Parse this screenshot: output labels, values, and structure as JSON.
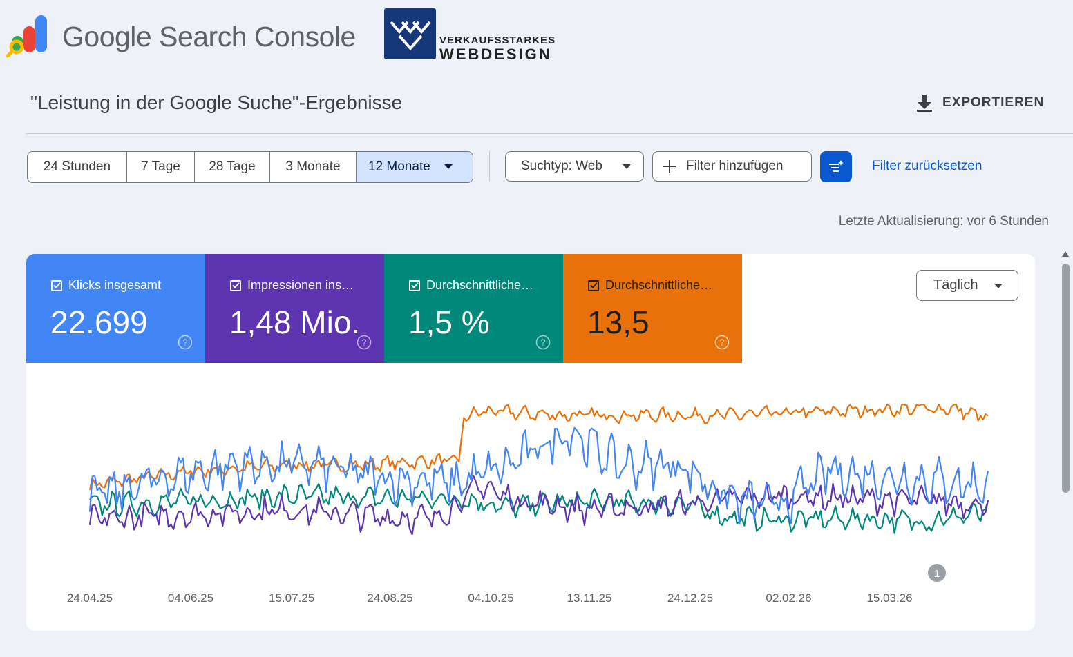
{
  "brand": {
    "product_name": "Google Search Console",
    "partner_line1": "VERKAUFSSTARKES",
    "partner_line2": "WEBDESIGN"
  },
  "page": {
    "title": "\"Leistung in der Google Suche\"-Ergebnisse",
    "export_label": "EXPORTIEREN",
    "last_update": "Letzte Aktualisierung: vor 6 Stunden"
  },
  "date_range": {
    "options": [
      "24 Stunden",
      "7 Tage",
      "28 Tage",
      "3 Monate",
      "12 Monate"
    ],
    "selected": "12 Monate"
  },
  "filters": {
    "search_type": "Suchtyp: Web",
    "add_filter": "Filter hinzufügen",
    "reset": "Filter zurücksetzen"
  },
  "metrics": [
    {
      "label": "Klicks insgesamt",
      "value": "22.699",
      "checked": true,
      "color": "#4285f4"
    },
    {
      "label": "Impressionen ins…",
      "value": "1,48 Mio.",
      "checked": true,
      "color": "#5e35b1"
    },
    {
      "label": "Durchschnittliche…",
      "value": "1,5 %",
      "checked": true,
      "color": "#00897b"
    },
    {
      "label": "Durchschnittliche…",
      "value": "13,5",
      "checked": true,
      "color": "#e8710a"
    }
  ],
  "granularity": "Täglich",
  "chart_data": {
    "type": "line",
    "x_tick_labels": [
      "24.04.25",
      "04.06.25",
      "15.07.25",
      "24.08.25",
      "04.10.25",
      "13.11.25",
      "24.12.25",
      "02.02.26",
      "15.03.26"
    ],
    "x_range": [
      "24.04.25",
      "29.04.26"
    ],
    "y_axis_labels": "none",
    "grid": false,
    "annotation": "1",
    "series": [
      {
        "color": "#4285f4",
        "note": "daily values, unitless (no y scale shown)",
        "knots": [
          [
            0,
            0.3
          ],
          [
            30,
            0.45
          ],
          [
            60,
            0.55
          ],
          [
            90,
            0.55
          ],
          [
            120,
            0.45
          ],
          [
            150,
            0.42
          ],
          [
            170,
            0.55
          ],
          [
            195,
            0.8
          ],
          [
            215,
            0.55
          ],
          [
            240,
            0.55
          ],
          [
            260,
            0.3
          ],
          [
            280,
            0.25
          ],
          [
            300,
            0.5
          ],
          [
            330,
            0.45
          ],
          [
            365,
            0.4
          ]
        ],
        "spread": 0.16
      },
      {
        "color": "#5e35b1",
        "knots": [
          [
            0,
            0.14
          ],
          [
            40,
            0.18
          ],
          [
            80,
            0.22
          ],
          [
            120,
            0.16
          ],
          [
            140,
            0.15
          ],
          [
            160,
            0.4
          ],
          [
            170,
            0.3
          ],
          [
            200,
            0.22
          ],
          [
            240,
            0.25
          ],
          [
            260,
            0.3
          ],
          [
            280,
            0.32
          ],
          [
            310,
            0.3
          ],
          [
            340,
            0.28
          ],
          [
            365,
            0.26
          ]
        ],
        "spread": 0.1
      },
      {
        "color": "#00897b",
        "knots": [
          [
            0,
            0.25
          ],
          [
            40,
            0.28
          ],
          [
            80,
            0.32
          ],
          [
            120,
            0.3
          ],
          [
            150,
            0.3
          ],
          [
            170,
            0.24
          ],
          [
            200,
            0.28
          ],
          [
            240,
            0.26
          ],
          [
            260,
            0.16
          ],
          [
            280,
            0.14
          ],
          [
            310,
            0.15
          ],
          [
            340,
            0.13
          ],
          [
            365,
            0.2
          ]
        ],
        "spread": 0.08
      },
      {
        "color": "#e8710a",
        "knots": [
          [
            0,
            0.4
          ],
          [
            40,
            0.5
          ],
          [
            80,
            0.55
          ],
          [
            110,
            0.55
          ],
          [
            140,
            0.58
          ],
          [
            150,
            0.58
          ],
          [
            152,
            0.9
          ],
          [
            160,
            0.95
          ],
          [
            190,
            0.92
          ],
          [
            220,
            0.92
          ],
          [
            260,
            0.92
          ],
          [
            290,
            0.94
          ],
          [
            320,
            0.96
          ],
          [
            350,
            0.97
          ],
          [
            365,
            0.9
          ]
        ],
        "spread": 0.05
      }
    ]
  }
}
